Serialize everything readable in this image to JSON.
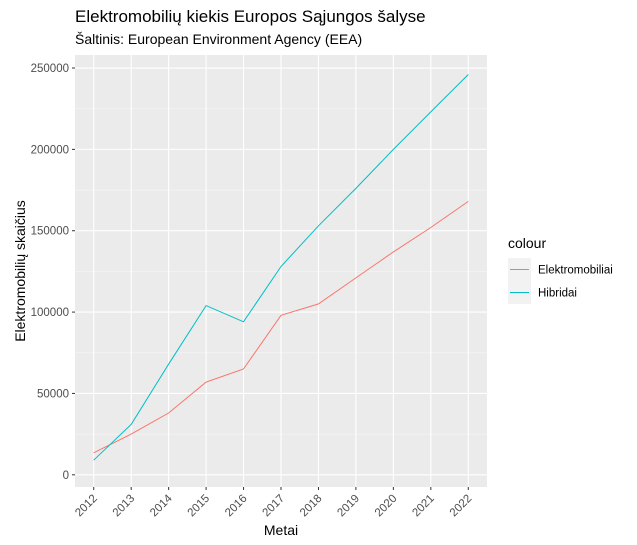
{
  "chart_data": {
    "type": "line",
    "title": "Elektromobilių kiekis Europos Sąjungos šalyse",
    "subtitle": "Šaltinis: European Environment Agency (EEA)",
    "xlabel": "Metai",
    "ylabel": "Elektromobilių skaičius",
    "x": [
      2012,
      2013,
      2014,
      2015,
      2016,
      2017,
      2018,
      2019,
      2020,
      2021,
      2022
    ],
    "x_tick_labels": [
      "2012",
      "2013",
      "2014",
      "2015",
      "2016",
      "2017",
      "2018",
      "2019",
      "2020",
      "2021",
      "2022"
    ],
    "y_ticks": [
      0,
      50000,
      100000,
      150000,
      200000,
      250000
    ],
    "y_tick_labels": [
      "0",
      "50000",
      "100000",
      "150000",
      "200000",
      "250000"
    ],
    "xlim": [
      2011.5,
      2022.5
    ],
    "ylim": [
      -7500,
      258000
    ],
    "grid": true,
    "legend_title": "colour",
    "legend_position": "right",
    "series": [
      {
        "name": "Elektromobiliai",
        "color": "#F8766D",
        "values": [
          13500,
          25000,
          38000,
          57000,
          65000,
          98000,
          105000,
          121000,
          137000,
          152000,
          168000
        ]
      },
      {
        "name": "Hibridai",
        "color": "#00BFC4",
        "values": [
          9000,
          31000,
          68000,
          104000,
          94000,
          128000,
          153000,
          176000,
          200000,
          223000,
          246000
        ]
      }
    ]
  }
}
